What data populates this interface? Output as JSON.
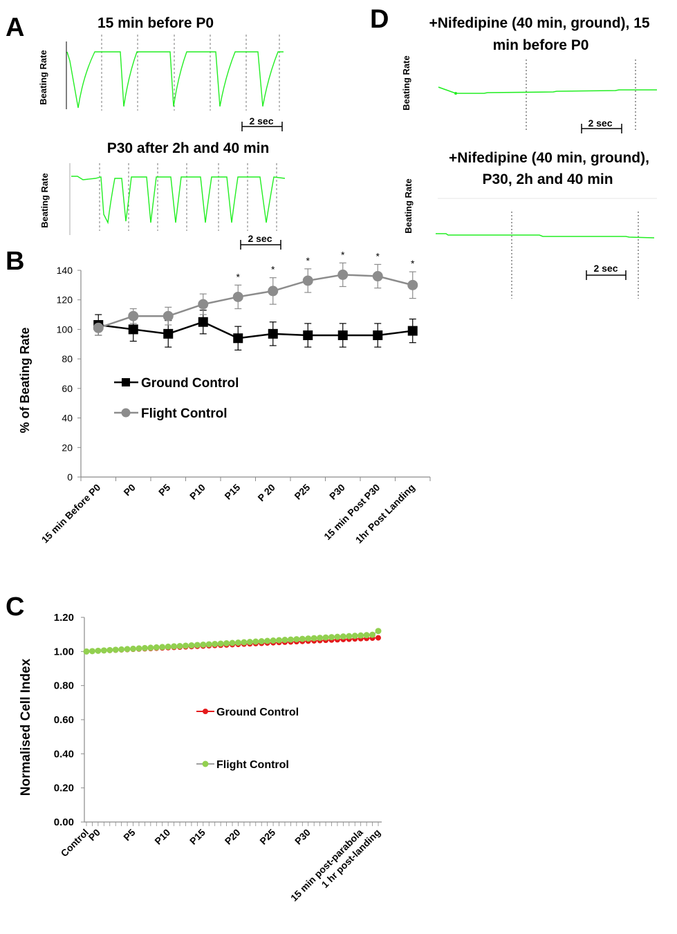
{
  "colors": {
    "trace": "#22ee22",
    "ground": "#000000",
    "flight": "#8c8c8c",
    "c_ground": "#e41a1c",
    "c_flight": "#92d050",
    "axis": "#000000",
    "tick_gray": "#8a8a8a"
  },
  "panel_letters": {
    "a": "A",
    "b": "B",
    "c": "C",
    "d": "D"
  },
  "panel_a": {
    "trace_ylabel": "Beating Rate",
    "scale_bar": "2 sec",
    "top_title": "15 min before P0",
    "bottom_title": "P30 after 2h and 40 min"
  },
  "panel_d": {
    "trace_ylabel": "Beating Rate",
    "scale_bar": "2 sec",
    "top_title_line1": "+Nifedipine (40 min, ground), 15",
    "top_title_line2": "min before P0",
    "bottom_title_line1": "+Nifedipine (40 min, ground),",
    "bottom_title_line2": "P30, 2h and 40 min"
  },
  "chart_data": [
    {
      "panel": "B",
      "type": "line",
      "ylabel": "% of Beating Rate",
      "ylim": [
        0,
        140
      ],
      "yticks": [
        0,
        20,
        40,
        60,
        80,
        100,
        120,
        140
      ],
      "categories": [
        "15 min Before P0",
        "P0",
        "P5",
        "P10",
        "P15",
        "P 20",
        "P25",
        "P30",
        "15 min Post  P30",
        "1hr Post  Landing"
      ],
      "legend": [
        "Ground Control",
        "Flight Control"
      ],
      "series": [
        {
          "name": "Ground Control",
          "values": [
            103,
            100,
            97,
            105,
            94,
            97,
            96,
            96,
            96,
            99
          ],
          "error": [
            7,
            8,
            9,
            8,
            8,
            8,
            8,
            8,
            8,
            8
          ]
        },
        {
          "name": "Flight Control",
          "values": [
            101,
            109,
            109,
            117,
            122,
            126,
            133,
            137,
            136,
            130
          ],
          "error": [
            5,
            5,
            6,
            7,
            8,
            9,
            8,
            8,
            8,
            9
          ]
        }
      ],
      "significance_marker": "*",
      "significant_indices": [
        4,
        5,
        6,
        7,
        8,
        9
      ]
    },
    {
      "panel": "C",
      "type": "line",
      "ylabel": "Normalised Cell Index",
      "ylim": [
        0,
        1.2
      ],
      "yticks": [
        "0.00",
        "0.20",
        "0.40",
        "0.60",
        "0.80",
        "1.00",
        "1.20"
      ],
      "points_per_series": 51,
      "xticklabels": [
        {
          "label": "Control",
          "index": 0
        },
        {
          "label": "P0",
          "index": 2
        },
        {
          "label": "P5",
          "index": 8
        },
        {
          "label": "P10",
          "index": 14
        },
        {
          "label": "P15",
          "index": 20
        },
        {
          "label": "P20",
          "index": 26
        },
        {
          "label": "P25",
          "index": 32
        },
        {
          "label": "P30",
          "index": 38
        },
        {
          "label": "15 min post-parabola",
          "index": 47
        },
        {
          "label": "1 hr post-landing",
          "index": 50
        }
      ],
      "legend": [
        "Ground Control",
        "Flight Control"
      ],
      "series": [
        {
          "name": "Ground Control",
          "start": 1.0,
          "end": 1.08
        },
        {
          "name": "Flight Control",
          "start": 1.0,
          "end": 1.1,
          "last": 1.12
        }
      ]
    }
  ]
}
